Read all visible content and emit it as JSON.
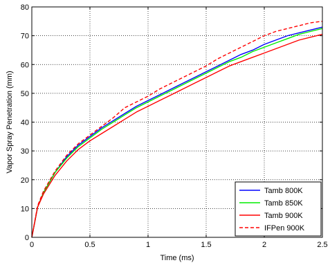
{
  "chart_data": {
    "type": "line",
    "xlabel": "Time (ms)",
    "ylabel": "Vapor Spray Penetration (mm)",
    "xlim": [
      0,
      2.5
    ],
    "ylim": [
      0,
      80
    ],
    "xticks": [
      0,
      0.5,
      1,
      1.5,
      2,
      2.5
    ],
    "xtick_labels": [
      "0",
      "0.5",
      "1",
      "1.5",
      "2",
      "2.5"
    ],
    "yticks": [
      0,
      10,
      20,
      30,
      40,
      50,
      60,
      70,
      80
    ],
    "ytick_labels": [
      "0",
      "10",
      "20",
      "30",
      "40",
      "50",
      "60",
      "70",
      "80"
    ],
    "grid": true,
    "legend_position": "bottom-right",
    "x": [
      0,
      0.05,
      0.1,
      0.2,
      0.3,
      0.4,
      0.5,
      0.6,
      0.7,
      0.8,
      0.9,
      1.0,
      1.1,
      1.2,
      1.3,
      1.4,
      1.5,
      1.6,
      1.7,
      1.8,
      1.9,
      2.0,
      2.1,
      2.2,
      2.3,
      2.4,
      2.5
    ],
    "series": [
      {
        "name": "Tamb 800K",
        "color": "#0000ff",
        "dash": "solid",
        "values": [
          0,
          10.5,
          15.5,
          22.5,
          28,
          32,
          35,
          38,
          40.5,
          43,
          45.5,
          47.5,
          49.5,
          51.5,
          53.5,
          55.5,
          57.5,
          59.5,
          61.5,
          63.5,
          65,
          67,
          68.5,
          70,
          71,
          72,
          73
        ]
      },
      {
        "name": "Tamb 850K",
        "color": "#00ee00",
        "dash": "solid",
        "values": [
          0,
          10.5,
          15.5,
          22.5,
          27.5,
          31.5,
          34.5,
          37.5,
          40,
          42.5,
          45,
          47,
          49,
          51,
          53,
          55,
          57,
          59,
          61,
          62.5,
          64.5,
          66,
          67.5,
          69,
          70.5,
          71.5,
          72.5
        ]
      },
      {
        "name": "Tamb 900K",
        "color": "#ff0000",
        "dash": "solid",
        "values": [
          0,
          10.5,
          15,
          21.5,
          26.5,
          30.5,
          33.5,
          36,
          38.5,
          41,
          43.5,
          45.5,
          47.5,
          49.5,
          51.5,
          53.5,
          55.5,
          57.5,
          59.5,
          61,
          62.5,
          64,
          65.5,
          67,
          68.5,
          69.5,
          70.5
        ]
      },
      {
        "name": "IFPen 900K",
        "color": "#ff0000",
        "dash": "dashed",
        "values": [
          0,
          11,
          16,
          23,
          28.5,
          32.5,
          35.5,
          38.5,
          41.5,
          45,
          47,
          49,
          51.5,
          53.5,
          55.5,
          57.5,
          59.5,
          62,
          64,
          66,
          68,
          70,
          71.5,
          72.5,
          73.5,
          74.5,
          75
        ]
      }
    ]
  }
}
